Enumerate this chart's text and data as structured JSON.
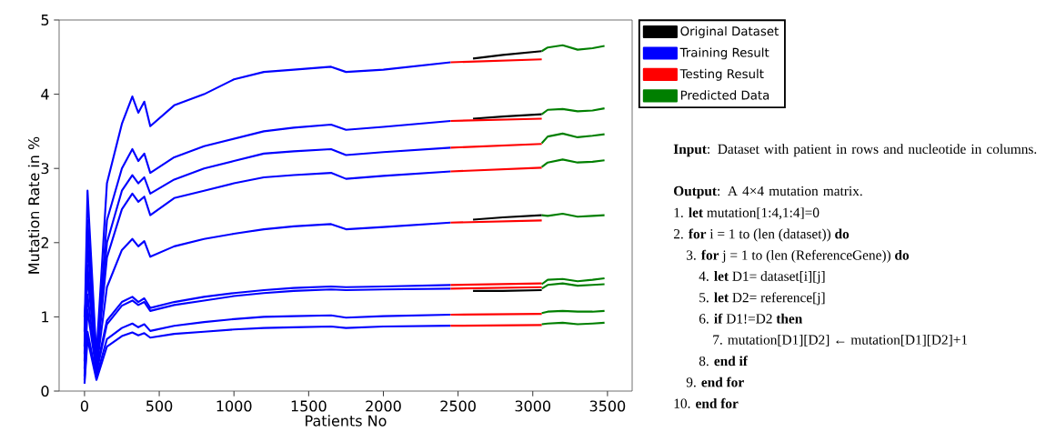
{
  "chart_data": [
    {
      "type": "line",
      "xlabel": "Patients No",
      "ylabel": "Mutation Rate in %",
      "xlim": [
        -170,
        3665
      ],
      "ylim": [
        0,
        5
      ],
      "xticks": [
        0,
        500,
        1000,
        1500,
        2000,
        2500,
        3000,
        3500
      ],
      "yticks": [
        0,
        1,
        2,
        3,
        4,
        5
      ],
      "legend": "top right",
      "series": [
        {
          "name": "Original Dataset",
          "color": "#000000",
          "x": [
            2600,
            2800,
            3060
          ],
          "values": [
            4.48,
            4.53,
            4.58
          ]
        },
        {
          "color": "#000000",
          "x": [
            2600,
            2800,
            3060
          ],
          "values": [
            3.67,
            3.7,
            3.73
          ]
        },
        {
          "color": "#000000",
          "x": [
            2600,
            2800,
            3060
          ],
          "values": [
            2.31,
            2.34,
            2.37
          ]
        },
        {
          "color": "#000000",
          "x": [
            2600,
            2800,
            3060
          ],
          "values": [
            1.35,
            1.35,
            1.36
          ]
        },
        {
          "name": "Training Result",
          "color": "#0000ff",
          "x": [
            0,
            20,
            80,
            150,
            250,
            320,
            360,
            400,
            440,
            600,
            800,
            1000,
            1200,
            1400,
            1650,
            1750,
            2000,
            2450
          ],
          "values": [
            1.0,
            1.5,
            0.5,
            2.8,
            3.6,
            3.97,
            3.75,
            3.9,
            3.57,
            3.85,
            4.0,
            4.2,
            4.3,
            4.33,
            4.37,
            4.3,
            4.33,
            4.43
          ]
        },
        {
          "color": "#0000ff",
          "x": [
            0,
            20,
            80,
            150,
            250,
            320,
            360,
            400,
            440,
            600,
            800,
            1000,
            1200,
            1400,
            1650,
            1750,
            2000,
            2450
          ],
          "values": [
            0.8,
            2.7,
            0.45,
            2.3,
            3.0,
            3.26,
            3.1,
            3.2,
            2.94,
            3.15,
            3.3,
            3.4,
            3.5,
            3.55,
            3.59,
            3.52,
            3.56,
            3.64
          ]
        },
        {
          "color": "#0000ff",
          "x": [
            0,
            20,
            80,
            150,
            250,
            320,
            360,
            400,
            440,
            600,
            800,
            1000,
            1200,
            1400,
            1650,
            1750,
            2000,
            2450
          ],
          "values": [
            0.6,
            2.3,
            0.4,
            2.0,
            2.7,
            2.91,
            2.8,
            2.88,
            2.66,
            2.85,
            3.0,
            3.1,
            3.2,
            3.23,
            3.26,
            3.18,
            3.22,
            3.28
          ]
        },
        {
          "color": "#0000ff",
          "x": [
            0,
            20,
            80,
            150,
            250,
            320,
            360,
            400,
            440,
            600,
            800,
            1000,
            1200,
            1400,
            1650,
            1750,
            2000,
            2450
          ],
          "values": [
            0.5,
            2.0,
            0.35,
            1.8,
            2.45,
            2.66,
            2.55,
            2.62,
            2.37,
            2.6,
            2.7,
            2.8,
            2.88,
            2.91,
            2.94,
            2.86,
            2.9,
            2.96
          ]
        },
        {
          "color": "#0000ff",
          "x": [
            0,
            20,
            80,
            150,
            250,
            320,
            360,
            400,
            440,
            600,
            800,
            1000,
            1200,
            1400,
            1650,
            1750,
            2000,
            2450
          ],
          "values": [
            0.4,
            1.7,
            0.3,
            1.4,
            1.9,
            2.05,
            1.95,
            2.02,
            1.81,
            1.95,
            2.05,
            2.12,
            2.18,
            2.22,
            2.25,
            2.18,
            2.21,
            2.27
          ]
        },
        {
          "color": "#0000ff",
          "x": [
            0,
            20,
            80,
            150,
            250,
            320,
            360,
            400,
            440,
            600,
            800,
            1000,
            1200,
            1400,
            1650,
            1750,
            2000,
            2450
          ],
          "values": [
            0.3,
            1.3,
            0.3,
            0.95,
            1.2,
            1.27,
            1.2,
            1.25,
            1.12,
            1.2,
            1.27,
            1.32,
            1.36,
            1.39,
            1.41,
            1.4,
            1.41,
            1.43
          ]
        },
        {
          "color": "#0000ff",
          "x": [
            0,
            20,
            80,
            150,
            250,
            320,
            360,
            400,
            440,
            600,
            800,
            1000,
            1200,
            1400,
            1650,
            1750,
            2000,
            2450
          ],
          "values": [
            0.2,
            1.1,
            0.25,
            0.9,
            1.15,
            1.22,
            1.16,
            1.2,
            1.08,
            1.16,
            1.22,
            1.28,
            1.32,
            1.35,
            1.37,
            1.36,
            1.37,
            1.38
          ]
        },
        {
          "color": "#0000ff",
          "x": [
            0,
            20,
            80,
            150,
            250,
            320,
            360,
            400,
            440,
            600,
            800,
            1000,
            1200,
            1400,
            1650,
            1750,
            2000,
            2450
          ],
          "values": [
            0.15,
            0.8,
            0.2,
            0.7,
            0.85,
            0.91,
            0.86,
            0.9,
            0.81,
            0.88,
            0.93,
            0.97,
            1.0,
            1.01,
            1.02,
            0.99,
            1.01,
            1.03
          ]
        },
        {
          "color": "#0000ff",
          "x": [
            0,
            20,
            80,
            150,
            250,
            320,
            360,
            400,
            440,
            600,
            800,
            1000,
            1200,
            1400,
            1650,
            1750,
            2000,
            2450
          ],
          "values": [
            0.1,
            0.7,
            0.15,
            0.6,
            0.74,
            0.79,
            0.75,
            0.78,
            0.72,
            0.77,
            0.8,
            0.83,
            0.85,
            0.86,
            0.87,
            0.85,
            0.87,
            0.88
          ]
        },
        {
          "name": "Testing Result",
          "color": "#ff0000",
          "x": [
            2450,
            3060
          ],
          "values": [
            4.43,
            4.47
          ]
        },
        {
          "color": "#ff0000",
          "x": [
            2450,
            3060
          ],
          "values": [
            3.64,
            3.67
          ]
        },
        {
          "color": "#ff0000",
          "x": [
            2450,
            3060
          ],
          "values": [
            3.28,
            3.33
          ]
        },
        {
          "color": "#ff0000",
          "x": [
            2450,
            3060
          ],
          "values": [
            2.96,
            3.01
          ]
        },
        {
          "color": "#ff0000",
          "x": [
            2450,
            3060
          ],
          "values": [
            2.27,
            2.3
          ]
        },
        {
          "color": "#ff0000",
          "x": [
            2450,
            3060
          ],
          "values": [
            1.43,
            1.45
          ]
        },
        {
          "color": "#ff0000",
          "x": [
            2450,
            3060
          ],
          "values": [
            1.38,
            1.4
          ]
        },
        {
          "color": "#ff0000",
          "x": [
            2450,
            3060
          ],
          "values": [
            1.03,
            1.04
          ]
        },
        {
          "color": "#ff0000",
          "x": [
            2450,
            3060
          ],
          "values": [
            0.88,
            0.89
          ]
        },
        {
          "name": "Predicted Data",
          "color": "#007f00",
          "x": [
            3060,
            3100,
            3200,
            3300,
            3400,
            3480
          ],
          "values": [
            4.58,
            4.63,
            4.66,
            4.6,
            4.62,
            4.65
          ]
        },
        {
          "color": "#007f00",
          "x": [
            3060,
            3100,
            3200,
            3300,
            3400,
            3480
          ],
          "values": [
            3.73,
            3.79,
            3.8,
            3.77,
            3.78,
            3.81
          ]
        },
        {
          "color": "#007f00",
          "x": [
            3060,
            3100,
            3200,
            3300,
            3400,
            3480
          ],
          "values": [
            3.34,
            3.43,
            3.47,
            3.42,
            3.44,
            3.46
          ]
        },
        {
          "color": "#007f00",
          "x": [
            3060,
            3100,
            3200,
            3300,
            3400,
            3480
          ],
          "values": [
            3.02,
            3.08,
            3.12,
            3.08,
            3.09,
            3.11
          ]
        },
        {
          "color": "#007f00",
          "x": [
            3060,
            3100,
            3200,
            3300,
            3400,
            3480
          ],
          "values": [
            2.37,
            2.36,
            2.39,
            2.35,
            2.36,
            2.37
          ]
        },
        {
          "color": "#007f00",
          "x": [
            3060,
            3100,
            3200,
            3300,
            3400,
            3480
          ],
          "values": [
            1.44,
            1.5,
            1.51,
            1.48,
            1.5,
            1.52
          ]
        },
        {
          "color": "#007f00",
          "x": [
            3060,
            3100,
            3200,
            3300,
            3400,
            3480
          ],
          "values": [
            1.38,
            1.43,
            1.45,
            1.42,
            1.43,
            1.44
          ]
        },
        {
          "color": "#007f00",
          "x": [
            3060,
            3100,
            3200,
            3300,
            3400,
            3480
          ],
          "values": [
            1.05,
            1.07,
            1.08,
            1.07,
            1.07,
            1.08
          ]
        },
        {
          "color": "#007f00",
          "x": [
            3060,
            3100,
            3200,
            3300,
            3400,
            3480
          ],
          "values": [
            0.9,
            0.91,
            0.92,
            0.9,
            0.91,
            0.92
          ]
        }
      ]
    },
    {
      "type": "other",
      "annotations": [
        "**Input**: Dataset with patient in rows and nucleotide in columns.",
        "**Output**: A 4×4 mutation matrix.",
        "1.  **let** mutation[1:4,1:4]=0",
        "2.  **for** i = 1 to (len (dataset))  **do**",
        "3.  **for** j = 1 to (len (ReferenceGene)) **do**",
        "4.  **let** D1= dataset[i][j]",
        "5.  **let** D2= reference[j]",
        "6.  **if**  D1!=D2 **then**",
        "7.  mutation[D1][D2] ← mutation[D1][D2]+1",
        "8.  **end if**",
        "9.  **end for**",
        "10. **end for**"
      ]
    }
  ]
}
